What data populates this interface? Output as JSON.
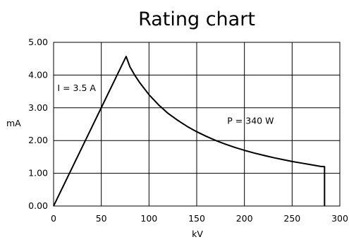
{
  "chart_data": {
    "type": "line",
    "title": "Rating chart",
    "xlabel": "kV",
    "ylabel": "mA",
    "xlim": [
      0,
      300
    ],
    "ylim": [
      0,
      5
    ],
    "grid": true,
    "x_ticks": [
      0,
      50,
      100,
      150,
      200,
      250,
      300
    ],
    "x_tick_labels": [
      "0",
      "50",
      "100",
      "150",
      "200",
      "250",
      "300"
    ],
    "y_ticks": [
      0,
      1,
      2,
      3,
      4,
      5
    ],
    "y_tick_labels": [
      "0.00",
      "1.00",
      "2.00",
      "3.00",
      "4.00",
      "5.00"
    ],
    "annotations": [
      {
        "text": "I = 3.5 A",
        "x": 4,
        "y": 3.6
      },
      {
        "text": "P = 340 W",
        "x": 182,
        "y": 2.6
      }
    ],
    "series": [
      {
        "points": [
          [
            0,
            0
          ],
          [
            76,
            4.57
          ],
          [
            80,
            4.25
          ],
          [
            85,
            4.0
          ],
          [
            90,
            3.78
          ],
          [
            100,
            3.4
          ],
          [
            110,
            3.09
          ],
          [
            120,
            2.83
          ],
          [
            130,
            2.62
          ],
          [
            140,
            2.43
          ],
          [
            150,
            2.27
          ],
          [
            160,
            2.13
          ],
          [
            170,
            2.0
          ],
          [
            180,
            1.89
          ],
          [
            190,
            1.79
          ],
          [
            200,
            1.7
          ],
          [
            210,
            1.62
          ],
          [
            220,
            1.55
          ],
          [
            230,
            1.48
          ],
          [
            240,
            1.42
          ],
          [
            250,
            1.36
          ],
          [
            260,
            1.31
          ],
          [
            270,
            1.26
          ],
          [
            280,
            1.21
          ],
          [
            284,
            1.2
          ],
          [
            284,
            0
          ]
        ]
      }
    ]
  }
}
